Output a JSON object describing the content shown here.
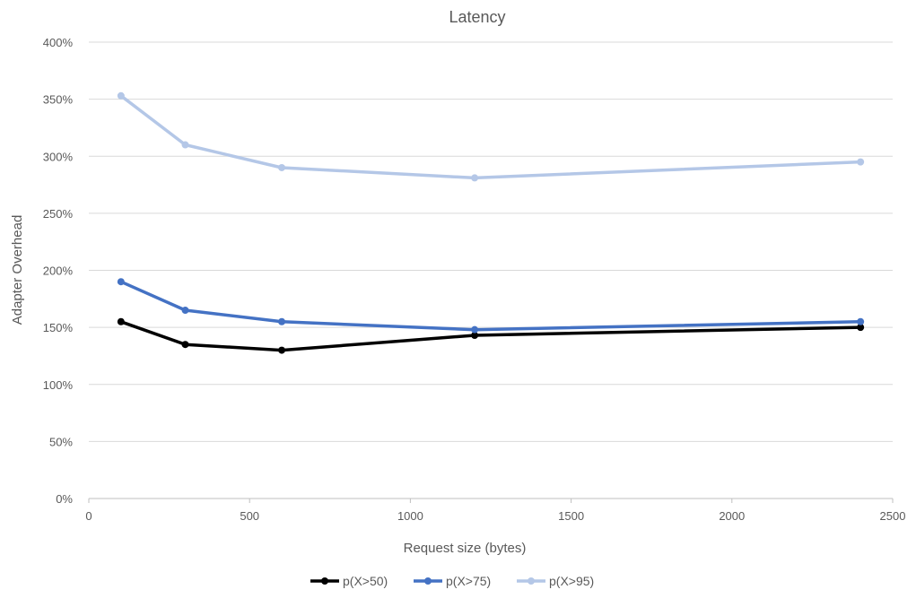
{
  "chart_data": {
    "type": "line",
    "title": "Latency",
    "xlabel": "Request size (bytes)",
    "ylabel": "Adapter Overhead",
    "xlim": [
      0,
      2500
    ],
    "ylim": [
      0,
      4
    ],
    "x_ticks": [
      0,
      500,
      1000,
      1500,
      2000,
      2500
    ],
    "x_tick_labels": [
      "0",
      "500",
      "1000",
      "1500",
      "2000",
      "2500"
    ],
    "y_ticks": [
      0,
      0.5,
      1,
      1.5,
      2,
      2.5,
      3,
      3.5,
      4
    ],
    "y_tick_labels": [
      "0%",
      "50%",
      "100%",
      "150%",
      "200%",
      "250%",
      "300%",
      "350%",
      "400%"
    ],
    "grid": true,
    "legend_position": "bottom",
    "series": [
      {
        "name": "p(X>50)",
        "color": "#000000",
        "x": [
          100,
          300,
          600,
          1200,
          2400
        ],
        "y": [
          1.55,
          1.35,
          1.3,
          1.43,
          1.5
        ]
      },
      {
        "name": "p(X>75)",
        "color": "#4472C4",
        "x": [
          100,
          300,
          600,
          1200,
          2400
        ],
        "y": [
          1.9,
          1.65,
          1.55,
          1.48,
          1.55
        ]
      },
      {
        "name": "p(X>95)",
        "color": "#B4C7E7",
        "x": [
          100,
          300,
          600,
          1200,
          2400
        ],
        "y": [
          3.53,
          3.1,
          2.9,
          2.81,
          2.95
        ]
      }
    ]
  }
}
